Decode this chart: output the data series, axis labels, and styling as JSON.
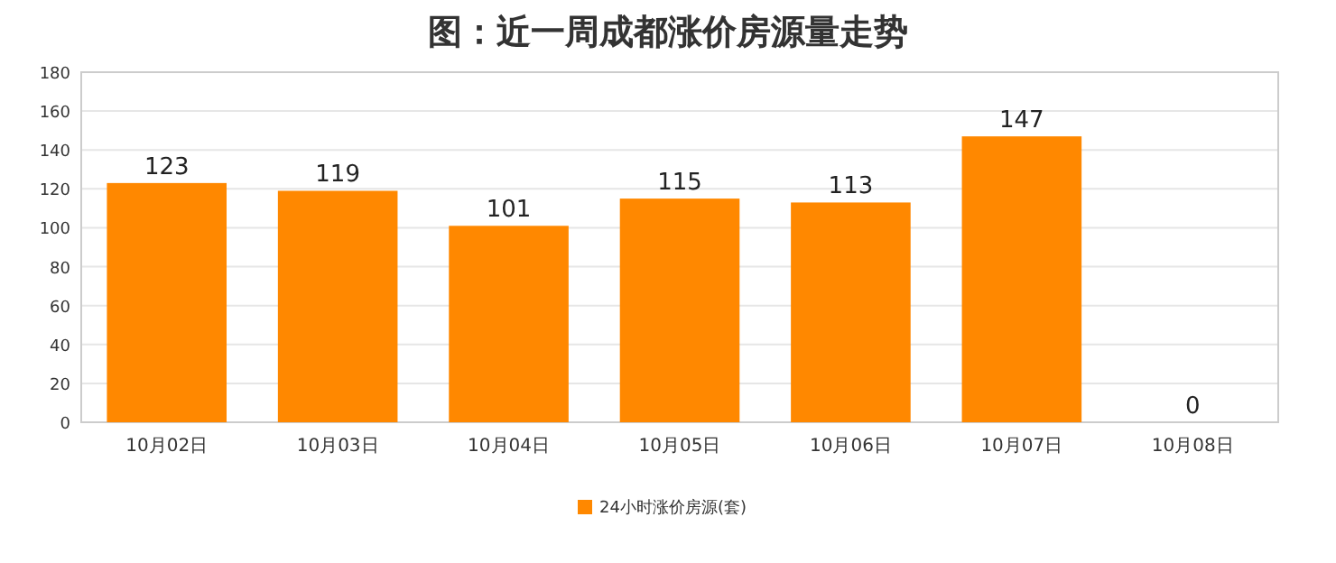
{
  "chart_data": {
    "type": "bar",
    "title": "图：近一周成都涨价房源量走势",
    "categories": [
      "10月02日",
      "10月03日",
      "10月04日",
      "10月05日",
      "10月06日",
      "10月07日",
      "10月08日"
    ],
    "series": [
      {
        "name": "24小时涨价房源(套)",
        "color": "#ff8800",
        "values": [
          123,
          119,
          101,
          115,
          113,
          147,
          0
        ]
      }
    ],
    "ylim": [
      0,
      180
    ],
    "yticks": [
      0,
      20,
      40,
      60,
      80,
      100,
      120,
      140,
      160,
      180
    ],
    "grid": "y",
    "legend": "bottom",
    "data_labels": true
  }
}
